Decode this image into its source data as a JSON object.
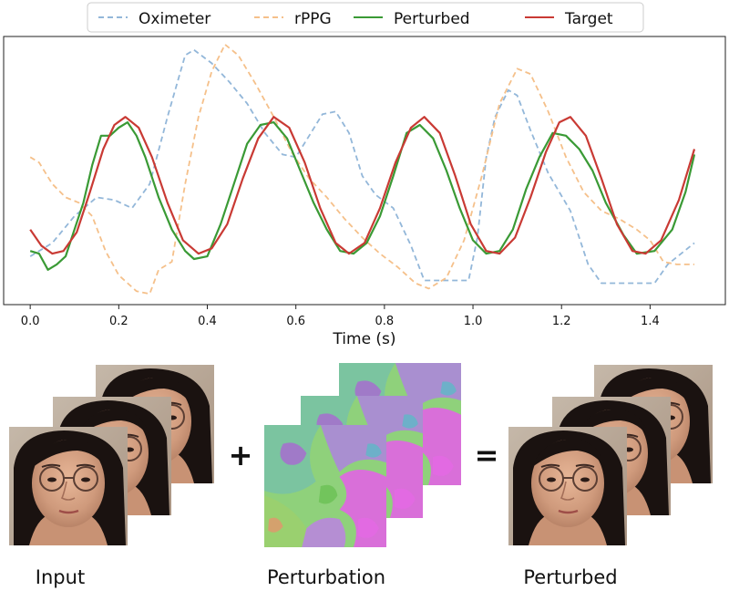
{
  "chart_data": {
    "type": "line",
    "xlabel": "Time (s)",
    "ylabel": "",
    "xlim": [
      -0.06,
      1.57
    ],
    "ylim": [
      0,
      1
    ],
    "x_ticks": [
      "0.0",
      "0.2",
      "0.4",
      "0.6",
      "0.8",
      "1.0",
      "1.2",
      "1.4"
    ],
    "grid": false,
    "legend_position": "top",
    "series": [
      {
        "name": "Oximeter",
        "style": "dashed",
        "color": "#93b7d9",
        "points": [
          [
            0,
            0.18
          ],
          [
            0.05,
            0.23
          ],
          [
            0.1,
            0.33
          ],
          [
            0.15,
            0.4
          ],
          [
            0.19,
            0.39
          ],
          [
            0.23,
            0.36
          ],
          [
            0.27,
            0.45
          ],
          [
            0.31,
            0.7
          ],
          [
            0.35,
            0.93
          ],
          [
            0.37,
            0.95
          ],
          [
            0.41,
            0.9
          ],
          [
            0.45,
            0.83
          ],
          [
            0.49,
            0.75
          ],
          [
            0.53,
            0.64
          ],
          [
            0.57,
            0.56
          ],
          [
            0.6,
            0.55
          ],
          [
            0.63,
            0.63
          ],
          [
            0.66,
            0.71
          ],
          [
            0.69,
            0.72
          ],
          [
            0.72,
            0.64
          ],
          [
            0.75,
            0.48
          ],
          [
            0.78,
            0.41
          ],
          [
            0.82,
            0.36
          ],
          [
            0.86,
            0.22
          ],
          [
            0.89,
            0.09
          ],
          [
            0.95,
            0.09
          ],
          [
            0.99,
            0.09
          ],
          [
            1.01,
            0.25
          ],
          [
            1.03,
            0.55
          ],
          [
            1.05,
            0.7
          ],
          [
            1.08,
            0.8
          ],
          [
            1.1,
            0.78
          ],
          [
            1.13,
            0.65
          ],
          [
            1.17,
            0.49
          ],
          [
            1.22,
            0.35
          ],
          [
            1.26,
            0.15
          ],
          [
            1.29,
            0.08
          ],
          [
            1.34,
            0.08
          ],
          [
            1.41,
            0.08
          ],
          [
            1.44,
            0.15
          ],
          [
            1.5,
            0.23
          ]
        ]
      },
      {
        "name": "rPPG",
        "style": "dashed",
        "color": "#f5c08a",
        "points": [
          [
            0,
            0.55
          ],
          [
            0.02,
            0.53
          ],
          [
            0.05,
            0.45
          ],
          [
            0.08,
            0.4
          ],
          [
            0.11,
            0.38
          ],
          [
            0.14,
            0.33
          ],
          [
            0.17,
            0.2
          ],
          [
            0.2,
            0.11
          ],
          [
            0.24,
            0.05
          ],
          [
            0.27,
            0.04
          ],
          [
            0.29,
            0.13
          ],
          [
            0.32,
            0.16
          ],
          [
            0.35,
            0.45
          ],
          [
            0.38,
            0.7
          ],
          [
            0.41,
            0.87
          ],
          [
            0.44,
            0.97
          ],
          [
            0.47,
            0.93
          ],
          [
            0.51,
            0.82
          ],
          [
            0.55,
            0.7
          ],
          [
            0.59,
            0.57
          ],
          [
            0.63,
            0.47
          ],
          [
            0.67,
            0.4
          ],
          [
            0.71,
            0.32
          ],
          [
            0.75,
            0.25
          ],
          [
            0.79,
            0.19
          ],
          [
            0.83,
            0.14
          ],
          [
            0.87,
            0.08
          ],
          [
            0.9,
            0.06
          ],
          [
            0.94,
            0.1
          ],
          [
            0.98,
            0.24
          ],
          [
            1.02,
            0.48
          ],
          [
            1.06,
            0.75
          ],
          [
            1.1,
            0.88
          ],
          [
            1.13,
            0.86
          ],
          [
            1.17,
            0.72
          ],
          [
            1.21,
            0.55
          ],
          [
            1.25,
            0.42
          ],
          [
            1.29,
            0.35
          ],
          [
            1.33,
            0.32
          ],
          [
            1.37,
            0.28
          ],
          [
            1.4,
            0.24
          ],
          [
            1.43,
            0.16
          ],
          [
            1.46,
            0.15
          ],
          [
            1.5,
            0.15
          ]
        ]
      },
      {
        "name": "Perturbed",
        "style": "solid",
        "color": "#3a9a35",
        "points": [
          [
            0,
            0.2
          ],
          [
            0.02,
            0.19
          ],
          [
            0.04,
            0.13
          ],
          [
            0.06,
            0.15
          ],
          [
            0.08,
            0.18
          ],
          [
            0.1,
            0.28
          ],
          [
            0.12,
            0.38
          ],
          [
            0.14,
            0.52
          ],
          [
            0.16,
            0.63
          ],
          [
            0.18,
            0.63
          ],
          [
            0.2,
            0.66
          ],
          [
            0.22,
            0.68
          ],
          [
            0.24,
            0.63
          ],
          [
            0.26,
            0.55
          ],
          [
            0.29,
            0.4
          ],
          [
            0.32,
            0.28
          ],
          [
            0.35,
            0.2
          ],
          [
            0.37,
            0.17
          ],
          [
            0.4,
            0.18
          ],
          [
            0.43,
            0.3
          ],
          [
            0.46,
            0.45
          ],
          [
            0.49,
            0.6
          ],
          [
            0.52,
            0.67
          ],
          [
            0.55,
            0.68
          ],
          [
            0.58,
            0.62
          ],
          [
            0.61,
            0.5
          ],
          [
            0.64,
            0.38
          ],
          [
            0.67,
            0.28
          ],
          [
            0.7,
            0.2
          ],
          [
            0.73,
            0.19
          ],
          [
            0.76,
            0.23
          ],
          [
            0.79,
            0.33
          ],
          [
            0.82,
            0.48
          ],
          [
            0.85,
            0.64
          ],
          [
            0.88,
            0.67
          ],
          [
            0.91,
            0.62
          ],
          [
            0.94,
            0.5
          ],
          [
            0.97,
            0.36
          ],
          [
            1.0,
            0.24
          ],
          [
            1.03,
            0.19
          ],
          [
            1.06,
            0.2
          ],
          [
            1.09,
            0.28
          ],
          [
            1.12,
            0.43
          ],
          [
            1.15,
            0.55
          ],
          [
            1.18,
            0.64
          ],
          [
            1.21,
            0.63
          ],
          [
            1.24,
            0.58
          ],
          [
            1.27,
            0.5
          ],
          [
            1.3,
            0.38
          ],
          [
            1.34,
            0.26
          ],
          [
            1.37,
            0.19
          ],
          [
            1.41,
            0.2
          ],
          [
            1.45,
            0.28
          ],
          [
            1.48,
            0.42
          ],
          [
            1.5,
            0.56
          ]
        ]
      },
      {
        "name": "Target",
        "style": "solid",
        "color": "#c93a34",
        "points": [
          [
            0,
            0.28
          ],
          [
            0.025,
            0.22
          ],
          [
            0.05,
            0.19
          ],
          [
            0.075,
            0.2
          ],
          [
            0.105,
            0.27
          ],
          [
            0.135,
            0.42
          ],
          [
            0.165,
            0.58
          ],
          [
            0.19,
            0.67
          ],
          [
            0.215,
            0.7
          ],
          [
            0.245,
            0.66
          ],
          [
            0.275,
            0.55
          ],
          [
            0.31,
            0.38
          ],
          [
            0.345,
            0.24
          ],
          [
            0.38,
            0.19
          ],
          [
            0.41,
            0.21
          ],
          [
            0.445,
            0.3
          ],
          [
            0.48,
            0.47
          ],
          [
            0.515,
            0.62
          ],
          [
            0.55,
            0.7
          ],
          [
            0.585,
            0.66
          ],
          [
            0.62,
            0.53
          ],
          [
            0.655,
            0.36
          ],
          [
            0.69,
            0.23
          ],
          [
            0.72,
            0.19
          ],
          [
            0.755,
            0.23
          ],
          [
            0.79,
            0.36
          ],
          [
            0.825,
            0.53
          ],
          [
            0.86,
            0.66
          ],
          [
            0.89,
            0.7
          ],
          [
            0.925,
            0.64
          ],
          [
            0.96,
            0.48
          ],
          [
            0.995,
            0.3
          ],
          [
            1.03,
            0.2
          ],
          [
            1.06,
            0.19
          ],
          [
            1.095,
            0.25
          ],
          [
            1.13,
            0.4
          ],
          [
            1.165,
            0.57
          ],
          [
            1.195,
            0.68
          ],
          [
            1.22,
            0.7
          ],
          [
            1.255,
            0.63
          ],
          [
            1.29,
            0.47
          ],
          [
            1.325,
            0.3
          ],
          [
            1.36,
            0.2
          ],
          [
            1.39,
            0.19
          ],
          [
            1.425,
            0.24
          ],
          [
            1.465,
            0.39
          ],
          [
            1.5,
            0.58
          ]
        ]
      }
    ]
  },
  "diagram": {
    "labels": {
      "input": "Input",
      "perturbation": "Perturbation",
      "perturbed": "Perturbed"
    },
    "operators": {
      "plus": "+",
      "equals": "="
    }
  }
}
